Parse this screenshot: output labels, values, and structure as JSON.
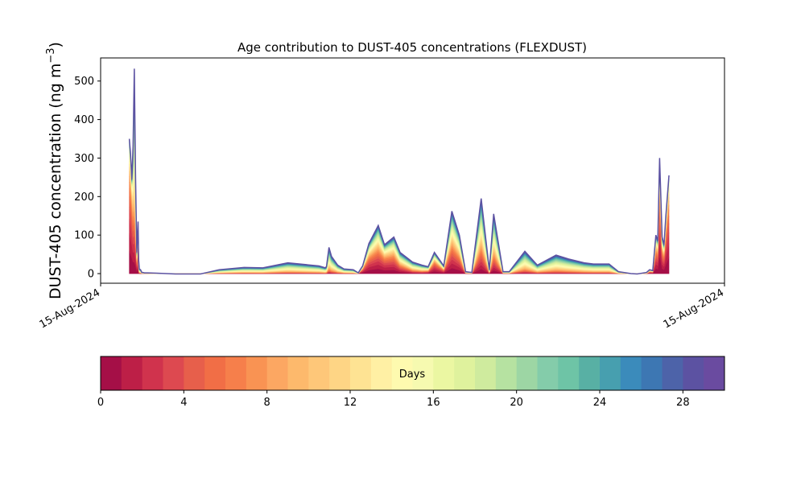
{
  "chart_data": {
    "type": "area",
    "title": "Age contribution to DUST-405 concentrations (FLEXDUST)",
    "ylabel_main": "DUST-405 concentration (ng m",
    "ylabel_sup": "−3",
    "ylabel_close": ")",
    "xlabel": "",
    "x_tick_labels": [
      "15-Aug-2024",
      "15-Aug-2024"
    ],
    "ylim": [
      -25,
      560
    ],
    "y_ticks": [
      0,
      100,
      200,
      300,
      400,
      500
    ],
    "x_domain": [
      0,
      100
    ],
    "x": [
      4.6,
      4.8,
      5.0,
      5.2,
      5.4,
      5.6,
      5.8,
      6.0,
      6.1,
      6.2,
      6.4,
      6.6,
      6.8,
      7.0,
      7.5,
      9,
      12,
      16,
      19,
      23,
      26,
      30,
      35,
      36,
      36.2,
      36.6,
      37,
      38,
      39,
      40.5,
      41.3,
      42,
      43,
      44.5,
      45.5,
      47,
      48,
      50,
      51.5,
      52.5,
      53.5,
      55,
      56.3,
      57.5,
      58.5,
      59.5,
      61,
      62.3,
      63,
      64.5,
      65.5,
      68,
      70,
      73,
      75,
      77.5,
      79,
      81.5,
      83,
      85,
      86,
      87.5,
      88,
      88.5,
      89,
      89.3,
      89.6,
      90,
      90.3,
      90.6,
      91.1
    ],
    "y_total": [
      350,
      310,
      245,
      330,
      532,
      250,
      55,
      135,
      35,
      12,
      10,
      3,
      3,
      2,
      2,
      1,
      -1,
      -1,
      10,
      16,
      15,
      28,
      20,
      15,
      18,
      68,
      45,
      22,
      12,
      10,
      2,
      20,
      78,
      125,
      75,
      95,
      55,
      30,
      22,
      18,
      55,
      20,
      162,
      100,
      5,
      3,
      195,
      10,
      155,
      5,
      5,
      58,
      22,
      48,
      38,
      28,
      25,
      25,
      5,
      0,
      -1,
      3,
      10,
      8,
      100,
      85,
      300,
      95,
      75,
      150,
      255
    ],
    "young_fraction": [
      0.96,
      0.96,
      0.97,
      0.75,
      0.55,
      0.7,
      0.85,
      0.85,
      0.5,
      0.25,
      0.15,
      0.1,
      0.1,
      0.1,
      0.05,
      0.05,
      0.0,
      0.0,
      0.0,
      0.0,
      0.0,
      0.0,
      0.0,
      0.0,
      0.05,
      0.1,
      0.08,
      0.05,
      0.05,
      0.05,
      0.3,
      0.9,
      0.85,
      0.8,
      0.85,
      0.8,
      0.7,
      0.5,
      0.5,
      0.7,
      0.85,
      0.8,
      0.75,
      0.75,
      0.5,
      0.5,
      0.6,
      0.4,
      0.55,
      0.4,
      0.2,
      0.15,
      0.15,
      0.05,
      0.05,
      0.05,
      0.05,
      0.05,
      0.05,
      0.1,
      0.1,
      0.2,
      0.85,
      0.85,
      0.9,
      0.9,
      0.95,
      0.9,
      0.9,
      0.95,
      0.97
    ],
    "colorbar": {
      "label": "Days",
      "range": [
        0,
        30
      ],
      "ticks": [
        0,
        4,
        8,
        12,
        16,
        20,
        24,
        28
      ],
      "colors": [
        "#a50f47",
        "#bd1f47",
        "#d0334d",
        "#dd4950",
        "#e75f4b",
        "#f16e46",
        "#f67f4b",
        "#f99353",
        "#fca762",
        "#fdb96c",
        "#fec779",
        "#fed585",
        "#fee393",
        "#fff0a4",
        "#fefaaf",
        "#f6fab0",
        "#ebf7a2",
        "#dff29d",
        "#cfeb9e",
        "#b6e2a1",
        "#9dd6a4",
        "#84ccaa",
        "#6ec4a6",
        "#58b0a4",
        "#479faf",
        "#3b8bbb",
        "#3d77b3",
        "#4d63a9",
        "#5c52a2",
        "#6a4ba0"
      ]
    },
    "grid": false,
    "legend": "none"
  }
}
